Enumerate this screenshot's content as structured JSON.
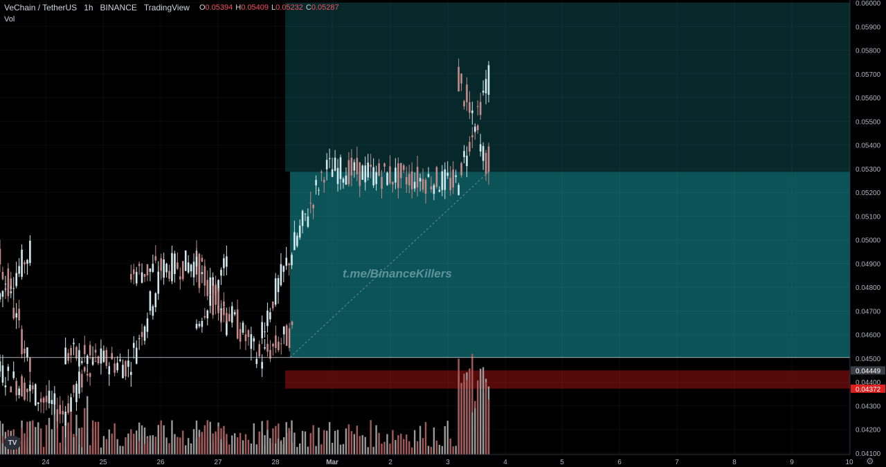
{
  "legend": {
    "symbol": "VeChain / TetherUS",
    "interval": "1h",
    "exchange": "BINANCE",
    "source": "TradingView",
    "open_label": "O",
    "open": "0.05394",
    "high_label": "H",
    "high": "0.05409",
    "low_label": "L",
    "low": "0.05232",
    "close_label": "C",
    "close": "0.05287"
  },
  "volume_label": "Vol",
  "watermark": "t.me/BinanceKillers",
  "tv_logo_text": "TV",
  "settings_icon": "gear-icon",
  "colors": {
    "background": "#000000",
    "up": "#d1e9ee",
    "down": "#c58b8b",
    "vol_up": "#9a9a9a",
    "vol_down": "#a55a5a",
    "profit_zone": "#0d5a5f",
    "loss_zone": "#5a0a0a",
    "axis_text": "#b2b5be",
    "last_price_badge": "#e01f1f"
  },
  "price_axis": {
    "ticks": [
      "0.06000",
      "0.05900",
      "0.05800",
      "0.05700",
      "0.05600",
      "0.05500",
      "0.05400",
      "0.05300",
      "0.05200",
      "0.05100",
      "0.05000",
      "0.04900",
      "0.04800",
      "0.04700",
      "0.04600",
      "0.04500",
      "0.04400",
      "0.04300",
      "0.04200",
      "0.04100"
    ],
    "badges": [
      {
        "value": "0.04449",
        "color": "#3a3d45"
      },
      {
        "value": "0.04372",
        "color": "#e01f1f"
      }
    ]
  },
  "time_axis": {
    "labels": [
      "24",
      "25",
      "26",
      "27",
      "28",
      "Mar",
      "2",
      "3",
      "4",
      "5",
      "6",
      "7",
      "8",
      "9",
      "10"
    ]
  },
  "chart_data": {
    "type": "candlestick",
    "price_range": [
      0.041,
      0.06
    ],
    "position": {
      "entry": 0.04504,
      "stop": 0.04372,
      "stop_band_top": 0.04449,
      "target": 0.05287,
      "upper_zone_top": 0.06
    },
    "horizontal_line": 0.04504,
    "segments": [
      {
        "from": "24",
        "to": "24",
        "start": 0.0475,
        "end": 0.0495
      },
      {
        "from": "24",
        "to": "24",
        "start": 0.0495,
        "end": 0.0445
      },
      {
        "from": "24",
        "to": "25",
        "start": 0.0445,
        "end": 0.0427
      },
      {
        "from": "25",
        "to": "25",
        "start": 0.0427,
        "end": 0.0452
      },
      {
        "from": "25",
        "to": "26",
        "start": 0.0452,
        "end": 0.0447
      },
      {
        "from": "26",
        "to": "26",
        "start": 0.0447,
        "end": 0.0486
      },
      {
        "from": "26",
        "to": "27",
        "start": 0.0486,
        "end": 0.049
      },
      {
        "from": "27",
        "to": "27",
        "start": 0.049,
        "end": 0.0463
      },
      {
        "from": "27",
        "to": "27",
        "start": 0.0463,
        "end": 0.049
      },
      {
        "from": "27",
        "to": "28",
        "start": 0.049,
        "end": 0.045
      },
      {
        "from": "28",
        "to": "28",
        "start": 0.045,
        "end": 0.0461
      },
      {
        "from": "28",
        "to": "Mar",
        "start": 0.0461,
        "end": 0.053
      },
      {
        "from": "Mar",
        "to": "3",
        "start": 0.053,
        "end": 0.0524
      },
      {
        "from": "3",
        "to": "3",
        "start": 0.0524,
        "end": 0.057
      },
      {
        "from": "3",
        "to": "3",
        "start": 0.057,
        "end": 0.05287
      }
    ]
  }
}
